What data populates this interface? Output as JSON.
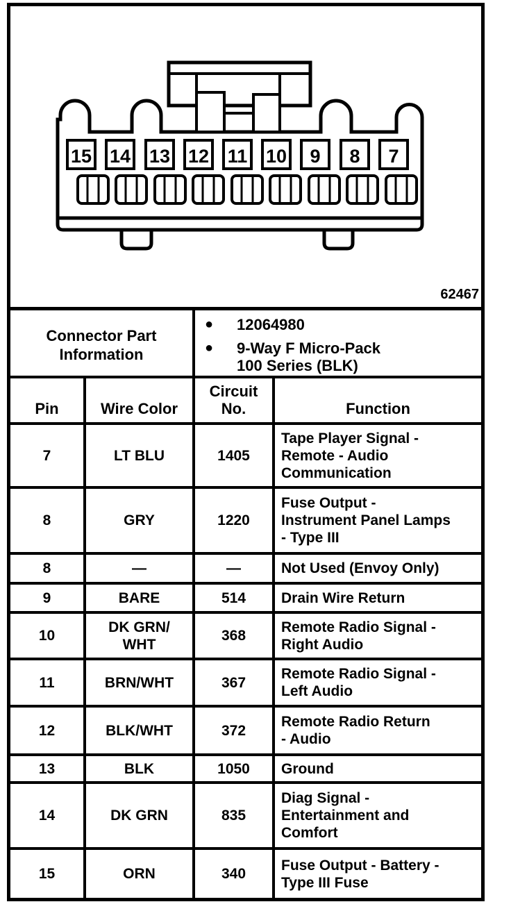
{
  "figure": {
    "pin_labels": [
      "15",
      "14",
      "13",
      "12",
      "11",
      "10",
      "9",
      "8",
      "7"
    ],
    "id_number": "62467"
  },
  "connector_info": {
    "label": "Connector Part\nInformation",
    "bullets": [
      "12064980",
      "9-Way F Micro-Pack\n100 Series (BLK)"
    ]
  },
  "table": {
    "headers": {
      "pin": "Pin",
      "wire_color": "Wire Color",
      "circuit_no": "Circuit\nNo.",
      "function": "Function"
    },
    "rows": [
      {
        "pin": "7",
        "wire_color": "LT BLU",
        "circuit_no": "1405",
        "function": "Tape Player Signal -\nRemote - Audio\nCommunication"
      },
      {
        "pin": "8",
        "wire_color": "GRY",
        "circuit_no": "1220",
        "function": "Fuse Output -\nInstrument Panel Lamps\n- Type III"
      },
      {
        "pin": "8",
        "wire_color": "—",
        "circuit_no": "—",
        "function": "Not Used (Envoy Only)"
      },
      {
        "pin": "9",
        "wire_color": "BARE",
        "circuit_no": "514",
        "function": "Drain Wire Return"
      },
      {
        "pin": "10",
        "wire_color": "DK GRN/\nWHT",
        "circuit_no": "368",
        "function": "Remote Radio Signal -\nRight Audio"
      },
      {
        "pin": "11",
        "wire_color": "BRN/WHT",
        "circuit_no": "367",
        "function": "Remote Radio Signal -\nLeft Audio"
      },
      {
        "pin": "12",
        "wire_color": "BLK/WHT",
        "circuit_no": "372",
        "function": "Remote Radio Return\n- Audio"
      },
      {
        "pin": "13",
        "wire_color": "BLK",
        "circuit_no": "1050",
        "function": "Ground"
      },
      {
        "pin": "14",
        "wire_color": "DK GRN",
        "circuit_no": "835",
        "function": "Diag Signal -\nEntertainment and\nComfort"
      },
      {
        "pin": "15",
        "wire_color": "ORN",
        "circuit_no": "340",
        "function": "Fuse Output - Battery -\nType III Fuse"
      }
    ]
  },
  "colors": {
    "ink": "#000000",
    "paper": "#ffffff"
  }
}
